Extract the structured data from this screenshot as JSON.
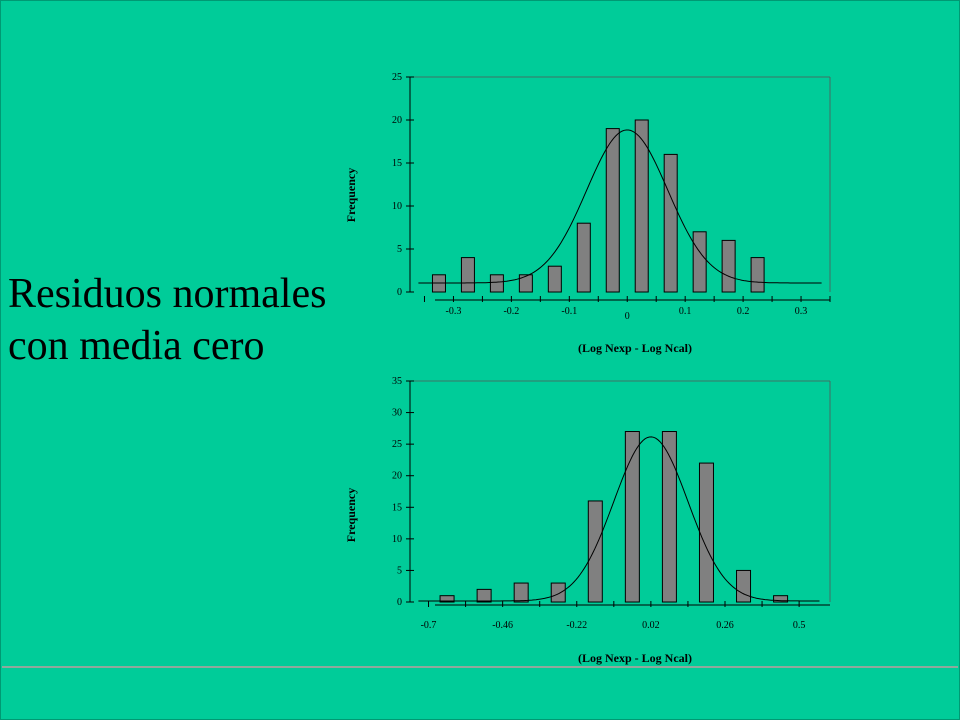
{
  "slide": {
    "text_line1": "Residuos normales",
    "text_line2": "con media cero"
  },
  "colors": {
    "background": "#00CC99",
    "bar_fill": "#808080",
    "bar_stroke": "#000000",
    "curve": "#000000"
  },
  "chart_data": [
    {
      "type": "bar",
      "overlay": "normal-curve",
      "xlabel": "(Log Nexp - Log Ncal)",
      "ylabel": "Frequency",
      "ylim": [
        0,
        25
      ],
      "y_ticks": [
        0,
        5,
        10,
        15,
        20,
        25
      ],
      "x_tick_labels": [
        "-0.3",
        "-0.2",
        "-0.1",
        "0",
        "0.1",
        "0.2",
        "0.3"
      ],
      "x_tick_positions": [
        -0.3,
        -0.2,
        -0.1,
        0.0,
        0.1,
        0.2,
        0.3
      ],
      "bar_centers": [
        -0.325,
        -0.275,
        -0.225,
        -0.175,
        -0.125,
        -0.075,
        -0.025,
        0.025,
        0.075,
        0.125,
        0.175,
        0.225
      ],
      "values": [
        2,
        4,
        2,
        2,
        3,
        8,
        19,
        20,
        16,
        7,
        6,
        4
      ],
      "xlim": [
        -0.375,
        0.35
      ],
      "curve": {
        "mean": 0.0,
        "sd": 0.07,
        "peak": 17.8
      }
    },
    {
      "type": "bar",
      "overlay": "normal-curve",
      "xlabel": "(Log Nexp - Log Ncal)",
      "ylabel": "Frequency",
      "ylim": [
        0,
        35
      ],
      "y_ticks": [
        0,
        5,
        10,
        15,
        20,
        25,
        30,
        35
      ],
      "x_tick_labels": [
        "-0.7",
        "-0.46",
        "-0.22",
        "0.02",
        "0.26",
        "0.5"
      ],
      "x_tick_positions": [
        -0.7,
        -0.46,
        -0.22,
        0.02,
        0.26,
        0.5
      ],
      "bar_centers": [
        -0.64,
        -0.52,
        -0.4,
        -0.28,
        -0.16,
        -0.04,
        0.08,
        0.2,
        0.32,
        0.44
      ],
      "values": [
        1,
        2,
        3,
        3,
        16,
        27,
        27,
        22,
        5,
        1
      ],
      "xlim": [
        -0.76,
        0.6
      ],
      "curve": {
        "mean": 0.02,
        "sd": 0.12,
        "peak": 26
      }
    }
  ]
}
